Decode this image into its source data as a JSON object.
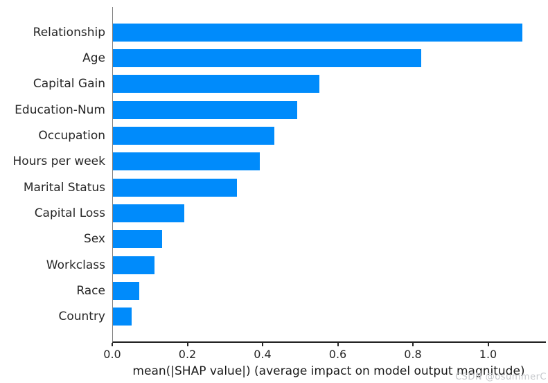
{
  "watermark": "CSDN @osummerC",
  "chart_data": {
    "type": "bar",
    "orientation": "horizontal",
    "title": "",
    "xlabel": "mean(|SHAP value|) (average impact on model output magnitude)",
    "ylabel": "",
    "categories": [
      "Relationship",
      "Age",
      "Capital Gain",
      "Education-Num",
      "Occupation",
      "Hours per week",
      "Marital Status",
      "Capital Loss",
      "Sex",
      "Workclass",
      "Race",
      "Country"
    ],
    "values": [
      1.09,
      0.82,
      0.55,
      0.49,
      0.43,
      0.39,
      0.33,
      0.19,
      0.13,
      0.11,
      0.07,
      0.05
    ],
    "x_ticks": [
      0.0,
      0.2,
      0.4,
      0.6,
      0.8,
      1.0
    ],
    "x_tick_labels": [
      "0.0",
      "0.2",
      "0.4",
      "0.6",
      "0.8",
      "1.0"
    ],
    "xlim": [
      0,
      1.15
    ],
    "grid": false,
    "legend": null,
    "colors": {
      "bar": "#008bfb",
      "left_spine": "#7f7f7f",
      "bottom_spine": "#1f1f1f",
      "text": "#262626"
    }
  }
}
